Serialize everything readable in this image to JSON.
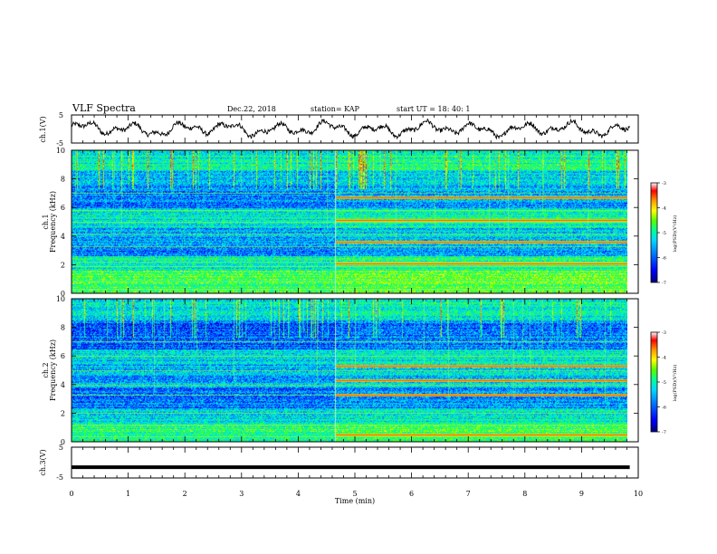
{
  "header": {
    "title": "VLF Spectra",
    "date": "Dec.22, 2018",
    "station": "station= KAP",
    "start": "start  UT =   18: 40: 1"
  },
  "chart_data": [
    {
      "type": "line",
      "panel": "ch1-waveform",
      "ylabel": "ch.1(V)",
      "ylim": [
        -5,
        5
      ],
      "yticks": [
        "5",
        "-5"
      ],
      "x_range_min": [
        0,
        9.85
      ],
      "trace_note": "noisy oscillating voltage, roughly between -2 and 2 V"
    },
    {
      "type": "heatmap",
      "panel": "ch1-spectrogram",
      "ylabel": "ch.1\nFrequency (kHz)",
      "ylim": [
        0,
        10
      ],
      "yticks": [
        "0",
        "2",
        "4",
        "6",
        "8",
        "10"
      ],
      "x_range_min": [
        0,
        9.85
      ],
      "change_time_min": 4.65,
      "steady_lines_khz": [
        0.3,
        0.9,
        1.9,
        2.2,
        3.3,
        4.2,
        5.0,
        5.8,
        7.0
      ],
      "bright_bands_after_change_khz": [
        2.1,
        3.6,
        5.1,
        6.7
      ]
    },
    {
      "type": "heatmap",
      "panel": "ch2-spectrogram",
      "ylabel": "ch.2\nFrequency (kHz)",
      "ylim": [
        0,
        10
      ],
      "yticks": [
        "0",
        "2",
        "4",
        "6",
        "8",
        "10"
      ],
      "x_range_min": [
        0,
        9.85
      ],
      "change_time_min": 4.65,
      "steady_lines_khz": [
        0.4,
        1.2,
        2.0,
        3.3,
        4.0,
        5.0,
        6.0,
        7.0
      ],
      "bright_bands_after_change_khz": [
        0.5,
        3.3,
        4.3,
        5.3
      ]
    },
    {
      "type": "line",
      "panel": "ch3-waveform",
      "ylabel": "ch.3(V)",
      "ylim": [
        -5,
        5
      ],
      "yticks": [
        "5",
        "-5"
      ],
      "x_range_min": [
        0,
        9.85
      ],
      "constant_value_v": -1.5
    }
  ],
  "xaxis": {
    "label": "Time (min)",
    "ticks": [
      "0",
      "1",
      "2",
      "3",
      "4",
      "5",
      "6",
      "7",
      "8",
      "9",
      "10"
    ],
    "range": [
      0,
      10
    ]
  },
  "colorbars": [
    {
      "label": "log(PSD)(V²/Hz)",
      "ticks": [
        "-3",
        "-4",
        "-5",
        "-6",
        "-7"
      ],
      "range": [
        -7,
        -3
      ]
    },
    {
      "label": "log(PSD)(V²/Hz)",
      "ticks": [
        "-3",
        "-4",
        "-5",
        "-6",
        "-7"
      ],
      "range": [
        -7,
        -3
      ]
    }
  ],
  "colors": {
    "colormap": [
      "#00007a",
      "#0000ff",
      "#0073ff",
      "#00d7ff",
      "#00ff9a",
      "#55ff00",
      "#ffff00",
      "#ff9a00",
      "#ff0000",
      "#ffffff"
    ],
    "trace": "#000000"
  }
}
